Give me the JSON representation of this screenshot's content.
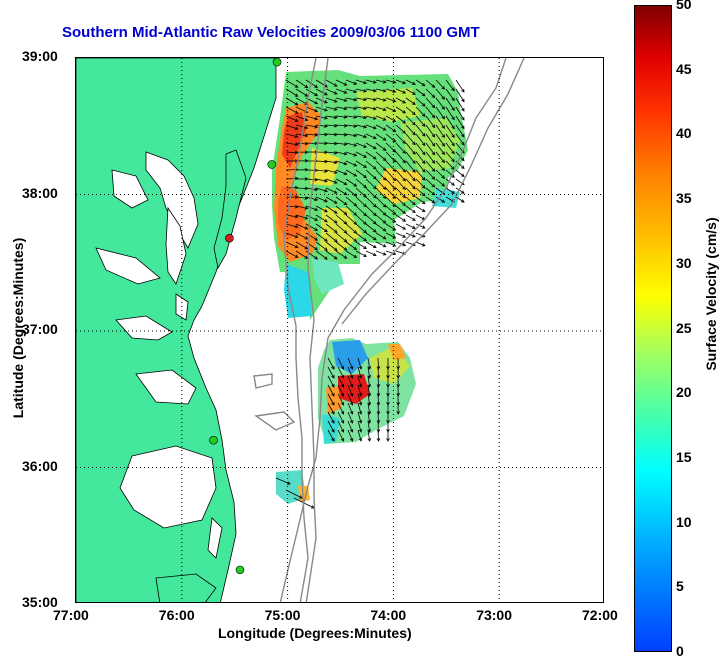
{
  "title": "Southern Mid-Atlantic Raw Velocities 2009/03/06 1100 GMT",
  "colors": {
    "title": "#0000cc",
    "land": "#44e89c",
    "coast": "#000000",
    "isobath": "#888888",
    "grid": "#000000"
  },
  "axes": {
    "xlabel": "Longitude (Degrees:Minutes)",
    "ylabel": "Latitude (Degrees:Minutes)",
    "x_ticks": [
      "77:00",
      "76:00",
      "75:00",
      "74:00",
      "73:00",
      "72:00"
    ],
    "y_ticks": [
      "39:00",
      "38:00",
      "37:00",
      "36:00",
      "35:00"
    ],
    "xlim_deg_west": [
      77,
      72
    ],
    "ylim_deg_north": [
      35,
      39
    ]
  },
  "colorbar": {
    "title": "Surface Velocity (cm/s)",
    "ticks": [
      "0",
      "5",
      "10",
      "15",
      "20",
      "25",
      "30",
      "35",
      "40",
      "45",
      "50"
    ],
    "range": [
      0,
      50
    ]
  },
  "stations": [
    {
      "lon": -75.1,
      "lat": 38.97,
      "color": "#22cc22"
    },
    {
      "lon": -75.15,
      "lat": 38.22,
      "color": "#22cc22"
    },
    {
      "lon": -75.55,
      "lat": 37.68,
      "color": "#cc2222"
    },
    {
      "lon": -75.7,
      "lat": 36.2,
      "color": "#22cc22"
    },
    {
      "lon": -75.45,
      "lat": 35.25,
      "color": "#22cc22"
    }
  ]
}
